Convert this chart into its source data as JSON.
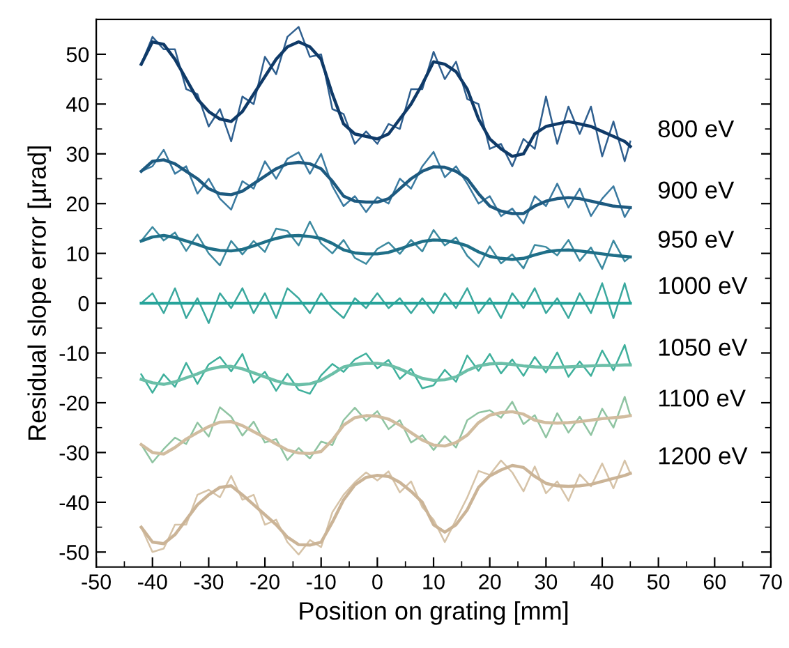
{
  "chart_data": {
    "type": "line",
    "xlabel": "Position on grating [mm]",
    "ylabel": "Residual slope error [µrad]",
    "x": [
      -42,
      -40,
      -38,
      -36,
      -34,
      -32,
      -30,
      -28,
      -26,
      -24,
      -22,
      -20,
      -18,
      -16,
      -14,
      -12,
      -10,
      -8,
      -6,
      -4,
      -2,
      0,
      2,
      4,
      6,
      8,
      10,
      12,
      14,
      16,
      18,
      20,
      22,
      24,
      26,
      28,
      30,
      32,
      34,
      36,
      38,
      40,
      42,
      44,
      45
    ],
    "xlim": [
      -50,
      70
    ],
    "xticks": [
      -50,
      -40,
      -30,
      -20,
      -10,
      0,
      10,
      20,
      30,
      40,
      50,
      60,
      70
    ],
    "ylim": [
      -53,
      57
    ],
    "yticks": [
      -50,
      -40,
      -30,
      -20,
      -10,
      0,
      10,
      20,
      30,
      40,
      50
    ],
    "grid": false,
    "legend": false,
    "marker": "none",
    "line_style": "solid",
    "series": [
      {
        "color": "#2f5f8f",
        "values": [
          48,
          53.5,
          51,
          51,
          43,
          42,
          35.5,
          39,
          32.5,
          41.5,
          40,
          49.5,
          46,
          53.5,
          55.5,
          49.5,
          50,
          39,
          38,
          32,
          34.5,
          32,
          36,
          35,
          43,
          43,
          50.5,
          45,
          48.5,
          41,
          40,
          31,
          32,
          27.5,
          33,
          31,
          41.5,
          32,
          39.5,
          34,
          39.5,
          29.5,
          36.5,
          28.5,
          32.5
        ]
      },
      {
        "name": "800 eV",
        "color": "#0f3a68",
        "values": [
          48,
          52.5,
          52,
          49,
          45,
          41,
          38.5,
          37,
          36.5,
          38.5,
          42,
          45.5,
          49,
          51.5,
          52.5,
          51.5,
          49,
          42,
          36,
          34,
          33.5,
          33,
          34,
          37,
          40,
          44,
          48.5,
          48,
          46.5,
          43,
          37,
          33,
          31,
          29.5,
          30,
          34,
          35.5,
          36,
          36.5,
          36,
          35.5,
          34.5,
          33.5,
          32.5,
          31.5
        ]
      },
      {
        "color": "#3a7aa0",
        "values": [
          26.5,
          27.5,
          30.8,
          26,
          27.5,
          22,
          25,
          21,
          18.8,
          24.5,
          23,
          28.5,
          25,
          29,
          30.3,
          26,
          30,
          23.5,
          19.5,
          21.5,
          18.3,
          21.3,
          20,
          25,
          23,
          27.5,
          30.4,
          25.3,
          27.5,
          24,
          20,
          21.5,
          17.5,
          19,
          16,
          21.5,
          19.5,
          24,
          19.2,
          23,
          17.5,
          21,
          23.5,
          17.3,
          19.2
        ]
      },
      {
        "name": "900 eV",
        "color": "#1d5a80",
        "values": [
          26.5,
          28.5,
          28.8,
          28,
          26.5,
          25,
          23,
          22,
          21.8,
          22.5,
          24,
          25.5,
          27,
          28,
          28.3,
          28,
          27,
          24.5,
          21.5,
          20.5,
          20.3,
          20.3,
          21,
          23,
          25,
          26.5,
          27.4,
          27.3,
          26.5,
          25,
          22,
          19.5,
          18.5,
          18,
          18,
          19.5,
          20.5,
          21,
          21.2,
          21,
          20.5,
          20,
          19.5,
          19.3,
          19.2
        ]
      },
      {
        "color": "#3c8aa0",
        "values": [
          12.5,
          15.3,
          12.6,
          14.2,
          10.5,
          13.8,
          10,
          7.6,
          12.5,
          9.8,
          12.5,
          10.3,
          15,
          14.5,
          11.6,
          16.4,
          12,
          10,
          12.7,
          9.1,
          7.9,
          10.9,
          12.2,
          9.9,
          12.7,
          10.4,
          14.7,
          11.6,
          13.2,
          9.5,
          7.3,
          11.4,
          8,
          9.8,
          7,
          11.7,
          11.3,
          9.6,
          12.7,
          8.5,
          11.2,
          6.9,
          12.6,
          8.4,
          9.3
        ]
      },
      {
        "name": "950 eV",
        "color": "#1f6f88",
        "values": [
          12.5,
          13.3,
          13.6,
          13.2,
          12.5,
          11.8,
          11,
          10.6,
          10.5,
          10.8,
          11.5,
          12.3,
          13,
          13.5,
          13.6,
          13.4,
          13,
          12,
          10.7,
          10.1,
          9.9,
          9.9,
          10.2,
          10.9,
          11.7,
          12.4,
          12.7,
          12.6,
          12.2,
          11.5,
          10.3,
          9.4,
          9,
          8.8,
          9,
          9.7,
          10.3,
          10.6,
          10.7,
          10.5,
          10.2,
          9.9,
          9.6,
          9.4,
          9.3
        ]
      },
      {
        "color": "#3aa89e",
        "values": [
          0,
          2,
          -2,
          3,
          -3,
          1,
          -4,
          2,
          -1,
          3,
          -2,
          2,
          -3,
          3,
          1,
          -2,
          2,
          -1,
          -3,
          1,
          -1,
          2,
          -1,
          1,
          -2,
          1,
          -2,
          2,
          -1,
          3,
          -2,
          1,
          -3,
          2,
          -1,
          3,
          -2,
          1,
          -3,
          2,
          -2,
          4,
          -3,
          4,
          0
        ]
      },
      {
        "name": "1000 eV",
        "color": "#26a49a",
        "values": [
          0,
          0,
          0,
          0,
          0,
          0,
          0,
          0,
          0,
          0,
          0,
          0,
          0,
          0,
          0,
          0,
          0,
          0,
          0,
          0,
          0,
          0,
          0,
          0,
          0,
          0,
          0,
          0,
          0,
          0,
          0,
          0,
          0,
          0,
          0,
          0,
          0,
          0,
          0,
          0,
          0,
          0,
          0,
          0,
          0
        ]
      },
      {
        "color": "#3fb09c",
        "values": [
          -14.3,
          -18,
          -14.3,
          -16.8,
          -12,
          -16.2,
          -12.3,
          -10.8,
          -13.7,
          -10.2,
          -16,
          -13.8,
          -17.6,
          -14.2,
          -17.4,
          -18.2,
          -14.5,
          -12.2,
          -13.8,
          -11.3,
          -10.1,
          -13.1,
          -11.4,
          -15.2,
          -13.2,
          -17.1,
          -16.5,
          -13.4,
          -15.8,
          -10.5,
          -13.6,
          -10.2,
          -14.1,
          -11.3,
          -14.6,
          -10.8,
          -13.9,
          -9.9,
          -14.8,
          -11.7,
          -14.6,
          -9.5,
          -13.5,
          -8.4,
          -12.4
        ]
      },
      {
        "name": "1050 eV",
        "color": "#6bbfa8",
        "values": [
          -15.3,
          -16,
          -16.3,
          -15.8,
          -15,
          -14.2,
          -13.3,
          -12.8,
          -12.7,
          -13.2,
          -14,
          -14.8,
          -15.6,
          -16.2,
          -16.4,
          -16.2,
          -15.5,
          -14.2,
          -12.8,
          -12.3,
          -12.1,
          -12.1,
          -12.4,
          -13.2,
          -14.2,
          -15.1,
          -15.5,
          -15.4,
          -14.8,
          -13.5,
          -12.6,
          -12.2,
          -12.1,
          -12.3,
          -12.6,
          -12.8,
          -12.9,
          -12.9,
          -12.8,
          -12.7,
          -12.6,
          -12.5,
          -12.5,
          -12.4,
          -12.4
        ]
      },
      {
        "color": "#8fc4a2",
        "values": [
          -28.4,
          -32,
          -29.3,
          -27,
          -28.3,
          -24,
          -26.8,
          -20.9,
          -22.8,
          -26.6,
          -23.8,
          -28,
          -27.3,
          -31.5,
          -29.1,
          -31.2,
          -27.8,
          -28.5,
          -23.5,
          -21,
          -23.6,
          -21.7,
          -25.3,
          -23.5,
          -28,
          -26.5,
          -29.5,
          -26.7,
          -29,
          -23.5,
          -22,
          -21.5,
          -23,
          -19.8,
          -24.3,
          -22.5,
          -27,
          -22.1,
          -26,
          -22.8,
          -26.5,
          -21.2,
          -25,
          -18.8,
          -22.6
        ]
      },
      {
        "name": "1100 eV",
        "color": "#d1bc9f",
        "values": [
          -28.4,
          -30,
          -30.3,
          -29,
          -27.3,
          -26,
          -24.8,
          -23.9,
          -23.8,
          -24.6,
          -25.8,
          -27,
          -28.3,
          -29.5,
          -30.1,
          -30.2,
          -29.8,
          -27.5,
          -24.5,
          -23,
          -22.6,
          -22.7,
          -23.3,
          -24.5,
          -26,
          -27.5,
          -28.5,
          -28.7,
          -28,
          -26.5,
          -24,
          -22.5,
          -22,
          -21.8,
          -22.3,
          -23.5,
          -24,
          -24.1,
          -24,
          -23.8,
          -23.5,
          -23.2,
          -23,
          -22.8,
          -22.6
        ]
      },
      {
        "color": "#d6c3a8",
        "values": [
          -45,
          -50,
          -49.3,
          -44.5,
          -44.5,
          -38.5,
          -37.5,
          -39,
          -34.7,
          -39.5,
          -38.5,
          -44.5,
          -43.5,
          -48,
          -50.5,
          -47.6,
          -49,
          -42,
          -38.5,
          -36,
          -34,
          -35.6,
          -33.8,
          -38,
          -35.8,
          -41,
          -43.5,
          -48,
          -43.5,
          -39,
          -33.7,
          -34.5,
          -31.6,
          -34,
          -37.8,
          -32.8,
          -38.2,
          -35.8,
          -39.7,
          -34.4,
          -36.8,
          -32.2,
          -37.2,
          -31.6,
          -34.2
        ]
      },
      {
        "name": "1200 eV",
        "color": "#cbb497",
        "values": [
          -45,
          -48,
          -48.3,
          -46.5,
          -43.5,
          -40.5,
          -38.5,
          -37,
          -36.7,
          -38.5,
          -40.5,
          -42.5,
          -44.5,
          -47,
          -48.5,
          -48.6,
          -48,
          -44,
          -39.5,
          -36.5,
          -35,
          -34.6,
          -34.8,
          -36,
          -37.8,
          -40,
          -44.5,
          -46,
          -44.5,
          -41.5,
          -37,
          -34.7,
          -33.5,
          -32.6,
          -33,
          -34.8,
          -36.2,
          -36.7,
          -36.8,
          -36.7,
          -36.4,
          -35.8,
          -35.2,
          -34.6,
          -34.2
        ]
      }
    ]
  }
}
